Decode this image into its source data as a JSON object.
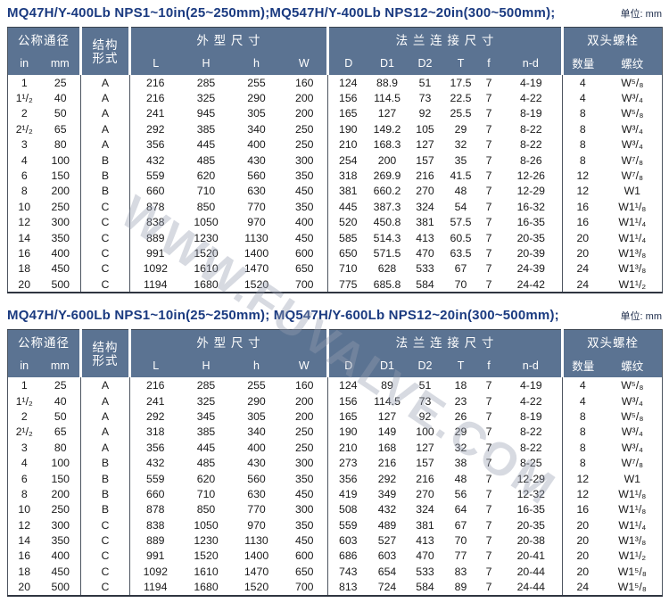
{
  "watermark": "WWW.FUVALVE.COM",
  "colors": {
    "header_bg": "#5b7392",
    "title_navy": "#1a3a80",
    "border_dark": "#4d5560"
  },
  "tables": [
    {
      "title": "MQ47H/Y-400Lb  NPS1~10in(25~250mm);MQ547H/Y-400Lb  NPS12~20in(300~500mm);",
      "unit": "单位: mm",
      "header": {
        "group_dn": "公称通径",
        "group_structure": "结构\n形式",
        "group_dims": "外 型 尺 寸",
        "group_flange": "法 兰 连 接 尺 寸",
        "group_bolts": "双头螺栓",
        "sub": [
          "in",
          "mm",
          "L",
          "H",
          "h",
          "W",
          "D",
          "D1",
          "D2",
          "T",
          "f",
          "n-d",
          "数量",
          "螺纹"
        ]
      },
      "rows": [
        [
          "1",
          "25",
          "A",
          "216",
          "285",
          "255",
          "160",
          "124",
          "88.9",
          "51",
          "17.5",
          "7",
          "4-19",
          "4",
          "W⁵/₈"
        ],
        [
          "1¹/₂",
          "40",
          "A",
          "216",
          "325",
          "290",
          "200",
          "156",
          "114.5",
          "73",
          "22.5",
          "7",
          "4-22",
          "4",
          "W³/₄"
        ],
        [
          "2",
          "50",
          "A",
          "241",
          "945",
          "305",
          "200",
          "165",
          "127",
          "92",
          "25.5",
          "7",
          "8-19",
          "8",
          "W⁵/₈"
        ],
        [
          "2¹/₂",
          "65",
          "A",
          "292",
          "385",
          "340",
          "250",
          "190",
          "149.2",
          "105",
          "29",
          "7",
          "8-22",
          "8",
          "W³/₄"
        ],
        [
          "3",
          "80",
          "A",
          "356",
          "445",
          "400",
          "250",
          "210",
          "168.3",
          "127",
          "32",
          "7",
          "8-22",
          "8",
          "W³/₄"
        ],
        [
          "4",
          "100",
          "B",
          "432",
          "485",
          "430",
          "300",
          "254",
          "200",
          "157",
          "35",
          "7",
          "8-26",
          "8",
          "W⁷/₈"
        ],
        [
          "6",
          "150",
          "B",
          "559",
          "620",
          "560",
          "350",
          "318",
          "269.9",
          "216",
          "41.5",
          "7",
          "12-26",
          "12",
          "W⁷/₈"
        ],
        [
          "8",
          "200",
          "B",
          "660",
          "710",
          "630",
          "450",
          "381",
          "660.2",
          "270",
          "48",
          "7",
          "12-29",
          "12",
          "W1"
        ],
        [
          "10",
          "250",
          "C",
          "878",
          "850",
          "770",
          "350",
          "445",
          "387.3",
          "324",
          "54",
          "7",
          "16-32",
          "16",
          "W1¹/₈"
        ],
        [
          "12",
          "300",
          "C",
          "838",
          "1050",
          "970",
          "400",
          "520",
          "450.8",
          "381",
          "57.5",
          "7",
          "16-35",
          "16",
          "W1¹/₄"
        ],
        [
          "14",
          "350",
          "C",
          "889",
          "1230",
          "1130",
          "450",
          "585",
          "514.3",
          "413",
          "60.5",
          "7",
          "20-35",
          "20",
          "W1¹/₄"
        ],
        [
          "16",
          "400",
          "C",
          "991",
          "1520",
          "1400",
          "600",
          "650",
          "571.5",
          "470",
          "63.5",
          "7",
          "20-39",
          "20",
          "W1³/₈"
        ],
        [
          "18",
          "450",
          "C",
          "1092",
          "1610",
          "1470",
          "650",
          "710",
          "628",
          "533",
          "67",
          "7",
          "24-39",
          "24",
          "W1³/₈"
        ],
        [
          "20",
          "500",
          "C",
          "1194",
          "1680",
          "1520",
          "700",
          "775",
          "685.8",
          "584",
          "70",
          "7",
          "24-42",
          "24",
          "W1¹/₂"
        ]
      ]
    },
    {
      "title": "MQ47H/Y-600Lb  NPS1~10in(25~250mm); MQ547H/Y-600Lb  NPS12~20in(300~500mm);",
      "unit": "单位: mm",
      "header": {
        "group_dn": "公称通径",
        "group_structure": "结构\n形式",
        "group_dims": "外 型 尺 寸",
        "group_flange": "法 兰 连 接 尺 寸",
        "group_bolts": "双头螺栓",
        "sub": [
          "in",
          "mm",
          "L",
          "H",
          "h",
          "W",
          "D",
          "D1",
          "D2",
          "T",
          "f",
          "n-d",
          "数量",
          "螺纹"
        ]
      },
      "rows": [
        [
          "1",
          "25",
          "A",
          "216",
          "285",
          "255",
          "160",
          "124",
          "89",
          "51",
          "18",
          "7",
          "4-19",
          "4",
          "W⁵/₈"
        ],
        [
          "1¹/₂",
          "40",
          "A",
          "241",
          "325",
          "290",
          "200",
          "156",
          "114.5",
          "73",
          "23",
          "7",
          "4-22",
          "4",
          "W³/₄"
        ],
        [
          "2",
          "50",
          "A",
          "292",
          "345",
          "305",
          "200",
          "165",
          "127",
          "92",
          "26",
          "7",
          "8-19",
          "8",
          "W⁵/₈"
        ],
        [
          "2¹/₂",
          "65",
          "A",
          "318",
          "385",
          "340",
          "250",
          "190",
          "149",
          "100",
          "29",
          "7",
          "8-22",
          "8",
          "W³/₄"
        ],
        [
          "3",
          "80",
          "A",
          "356",
          "445",
          "400",
          "250",
          "210",
          "168",
          "127",
          "32",
          "7",
          "8-22",
          "8",
          "W³/₄"
        ],
        [
          "4",
          "100",
          "B",
          "432",
          "485",
          "430",
          "300",
          "273",
          "216",
          "157",
          "38",
          "7",
          "8-25",
          "8",
          "W⁷/₈"
        ],
        [
          "6",
          "150",
          "B",
          "559",
          "620",
          "560",
          "350",
          "356",
          "292",
          "216",
          "48",
          "7",
          "12-29",
          "12",
          "W1"
        ],
        [
          "8",
          "200",
          "B",
          "660",
          "710",
          "630",
          "450",
          "419",
          "349",
          "270",
          "56",
          "7",
          "12-32",
          "12",
          "W1¹/₈"
        ],
        [
          "10",
          "250",
          "B",
          "878",
          "850",
          "770",
          "300",
          "508",
          "432",
          "324",
          "64",
          "7",
          "16-35",
          "16",
          "W1¹/₈"
        ],
        [
          "12",
          "300",
          "C",
          "838",
          "1050",
          "970",
          "350",
          "559",
          "489",
          "381",
          "67",
          "7",
          "20-35",
          "20",
          "W1¹/₄"
        ],
        [
          "14",
          "350",
          "C",
          "889",
          "1230",
          "1130",
          "450",
          "603",
          "527",
          "413",
          "70",
          "7",
          "20-38",
          "20",
          "W1³/₈"
        ],
        [
          "16",
          "400",
          "C",
          "991",
          "1520",
          "1400",
          "600",
          "686",
          "603",
          "470",
          "77",
          "7",
          "20-41",
          "20",
          "W1¹/₂"
        ],
        [
          "18",
          "450",
          "C",
          "1092",
          "1610",
          "1470",
          "650",
          "743",
          "654",
          "533",
          "83",
          "7",
          "20-44",
          "20",
          "W1⁵/₈"
        ],
        [
          "20",
          "500",
          "C",
          "1194",
          "1680",
          "1520",
          "700",
          "813",
          "724",
          "584",
          "89",
          "7",
          "24-44",
          "24",
          "W1⁵/₈"
        ]
      ]
    }
  ]
}
